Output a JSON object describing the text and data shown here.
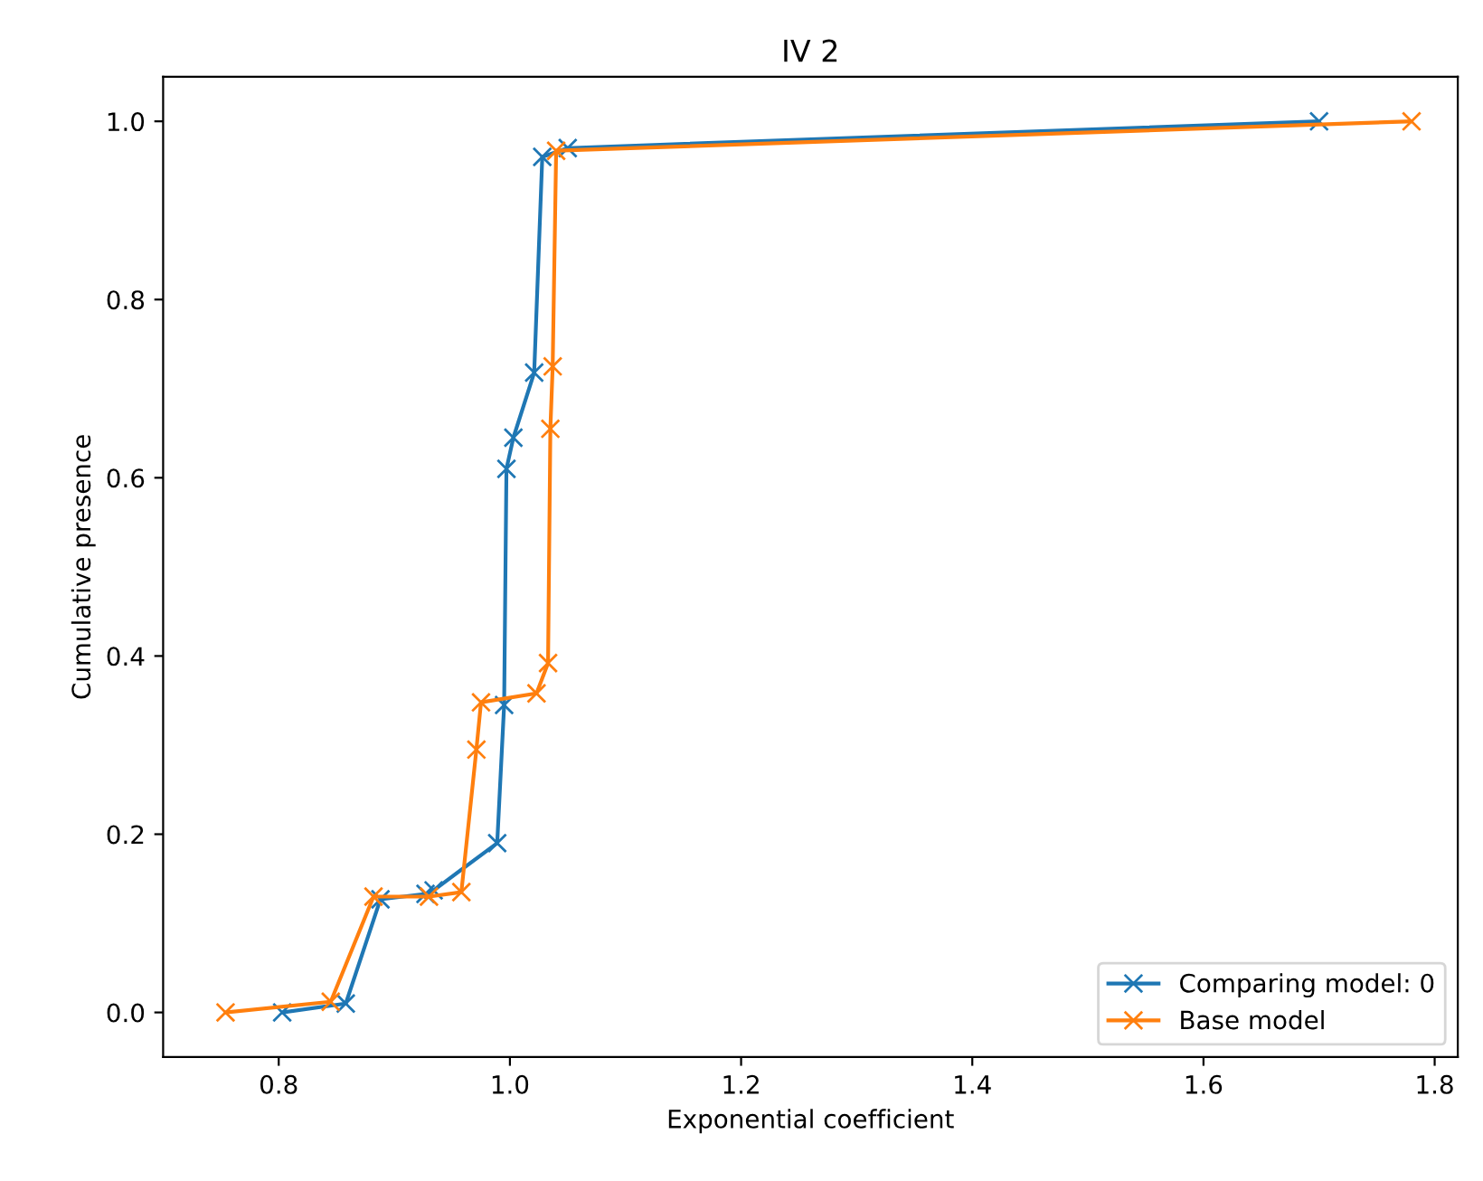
{
  "chart_data": {
    "type": "line",
    "title": "IV 2",
    "xlabel": "Exponential coefficient",
    "ylabel": "Cumulative presence",
    "xlim": [
      0.7,
      1.82
    ],
    "ylim": [
      -0.05,
      1.05
    ],
    "xticks": [
      0.8,
      {
        "value": 1,
        "label": "1.0"
      },
      1.2,
      1.4,
      1.6,
      1.8
    ],
    "yticks": [
      {
        "value": 0,
        "label": "0.0"
      },
      0.2,
      0.4,
      0.6,
      0.8,
      {
        "value": 1,
        "label": "1.0"
      }
    ],
    "grid": false,
    "legend": "bottom right",
    "marker": "cross",
    "line_style": "solid",
    "series": [
      {
        "name": "Comparing model: 0",
        "color": "#1f77b4",
        "x": [
          0.803,
          0.858,
          0.888,
          0.927,
          0.934,
          0.989,
          0.995,
          0.997,
          1.003,
          1.021,
          1.028,
          1.05,
          1.7
        ],
        "values": [
          0,
          0.01,
          0.127,
          0.133,
          0.137,
          0.19,
          0.345,
          0.61,
          0.645,
          0.718,
          0.96,
          0.97,
          1.0
        ]
      },
      {
        "name": "Base model",
        "color": "#ff7f0e",
        "x": [
          0.754,
          0.845,
          0.882,
          0.93,
          0.958,
          0.971,
          0.975,
          1.023,
          1.033,
          1.035,
          1.037,
          1.04,
          1.78
        ],
        "values": [
          0,
          0.012,
          0.13,
          0.13,
          0.135,
          0.295,
          0.348,
          0.358,
          0.392,
          0.655,
          0.725,
          0.967,
          1.0
        ]
      }
    ]
  }
}
